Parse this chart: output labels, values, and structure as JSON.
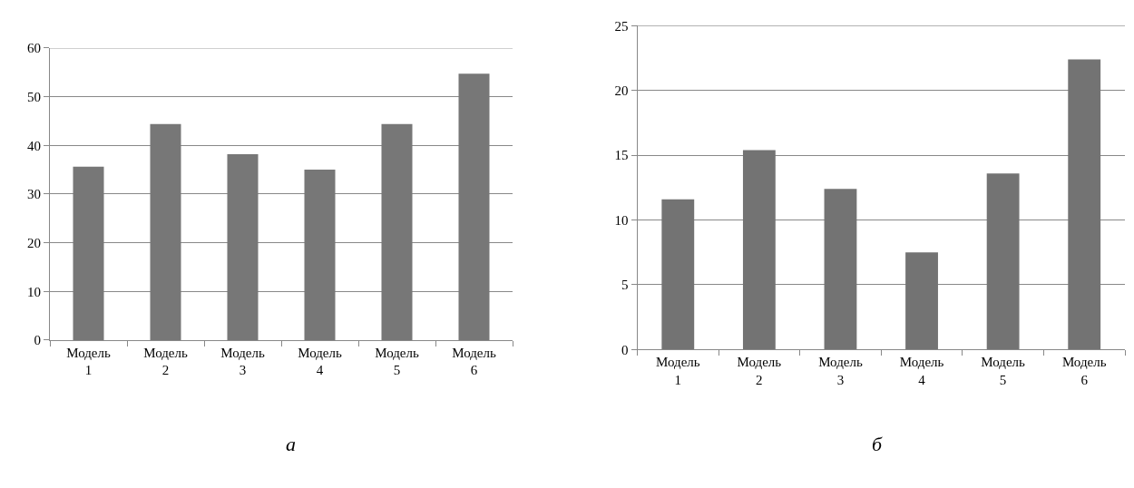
{
  "chart_data": [
    {
      "type": "bar",
      "categories": [
        "Модель 1",
        "Модель 2",
        "Модель 3",
        "Модель 4",
        "Модель 5",
        "Модель 6"
      ],
      "values": [
        35.6,
        44.4,
        38.2,
        35.0,
        44.4,
        54.7
      ],
      "color": "#777777",
      "ylim": [
        0,
        60
      ],
      "yticks": [
        0,
        10,
        20,
        30,
        40,
        50,
        60
      ],
      "grid": "y",
      "annotations": [
        "а"
      ]
    },
    {
      "type": "bar",
      "categories": [
        "Модель 1",
        "Модель 2",
        "Модель 3",
        "Модель 4",
        "Модель 5",
        "Модель 6"
      ],
      "values": [
        11.6,
        15.4,
        12.4,
        7.5,
        13.6,
        22.4
      ],
      "color": "#737373",
      "ylim": [
        0,
        25
      ],
      "yticks": [
        0,
        5,
        10,
        15,
        20,
        25
      ],
      "grid": "y",
      "annotations": [
        "б"
      ]
    }
  ]
}
